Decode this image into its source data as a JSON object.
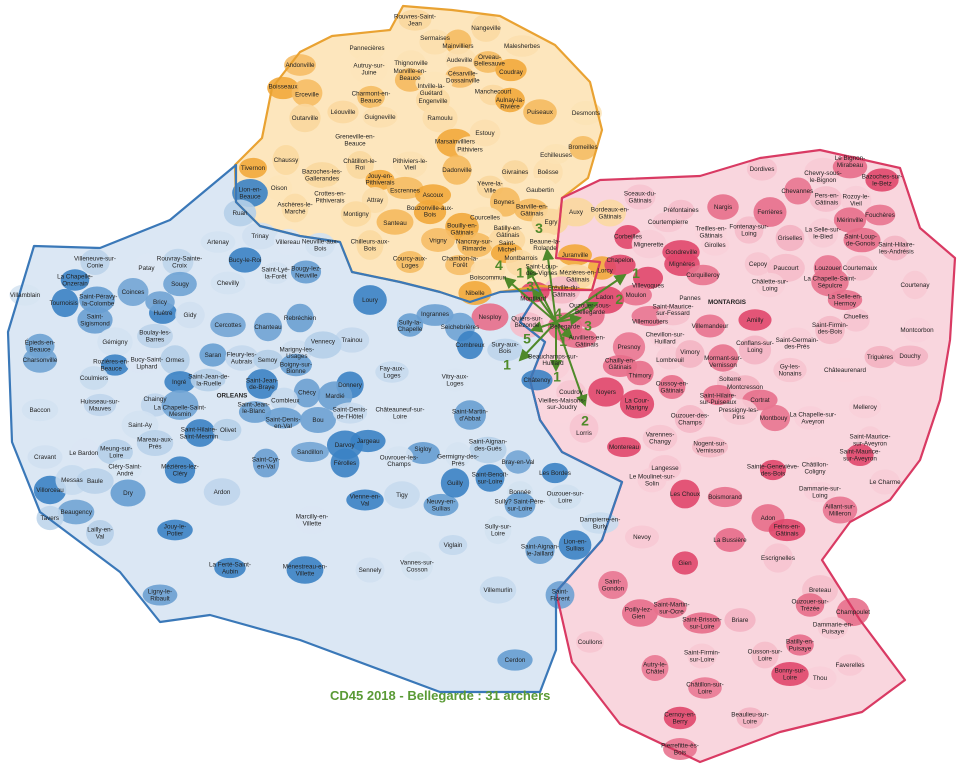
{
  "title": "CD45 2018 - Bellegarde : 31 archers",
  "colors": {
    "north": "#f2a93b",
    "north_light": "#fde6bd",
    "north_border": "#e9a232",
    "west": "#3b82c4",
    "west_light": "#dbe7f4",
    "west_border": "#3a78b8",
    "east": "#e0476b",
    "east_light": "#f9d6de",
    "east_border": "#d93a63",
    "arrows": "#4f8a2a"
  },
  "hub": {
    "name": "Bellegarde",
    "count": 4
  },
  "flows": [
    {
      "to": "Beaune-la-Rolande",
      "count": 3
    },
    {
      "to": "Boiscommun",
      "count": 4
    },
    {
      "to": "Montbarrois",
      "count": 1
    },
    {
      "to": "Montliard",
      "count": 3
    },
    {
      "to": "Chapelon",
      "count": 1
    },
    {
      "to": "Ladon",
      "count": 2
    },
    {
      "to": "Ouzouer-sous-Bellegarde",
      "count": 3
    },
    {
      "to": "Quiers-sur-Bézonde",
      "count": 5
    },
    {
      "to": "Auvilliers-en-Gâtinais",
      "count": 1
    },
    {
      "to": "Sury-aux-Bois",
      "count": 1
    },
    {
      "to": "Beauchamps-sur-Huillard",
      "count": 1
    },
    {
      "to": "Coudroy",
      "count": 2
    }
  ],
  "communes": {
    "north": [
      "Rouvres-Saint-Jean",
      "Sermaises",
      "Pannecières",
      "Nangeville",
      "Mainvilliers",
      "Malesherbes",
      "Andonville",
      "Autruy-sur-Juine",
      "Thignonville",
      "Audeville",
      "Orveau-Bellesauve",
      "Coudray",
      "Césarville-Dossainville",
      "Morville-en-Beauce",
      "Intville-la-Guétard",
      "Boisseaux",
      "Erceville",
      "Charmont-en-Beauce",
      "Manchecourt",
      "Engenville",
      "Aulnay-la-Rivière",
      "Outarville",
      "Léouville",
      "Guigneville",
      "Ramoulu",
      "Marsainvilliers",
      "Puiseaux",
      "Pithiviers",
      "Estouy",
      "Dadonville",
      "Greneville-en-Beauce",
      "Chaussy",
      "Bazoches-les-Gallerandes",
      "Châtillon-le-Roi",
      "Jouy-en-Pithiverais",
      "Pithiviers-le-Vieil",
      "Escrennes",
      "Tivernon",
      "Oison",
      "Ascoux",
      "Yèvre-la-Ville",
      "Givraines",
      "Boësse",
      "Echilleuses",
      "Bromeilles",
      "Desmonts",
      "Gaubertin",
      "Boynes",
      "Barville-en-Gâtinais",
      "Aschères-le-Marché",
      "Crottes-en-Pithiverais",
      "Attray",
      "Montigny",
      "Bouzonville-aux-Bois",
      "Courcelles",
      "Egry",
      "Auxy",
      "Bordeaux-en-Gâtinais",
      "Santeau",
      "Bouilly-en-Gâtinais",
      "Chilleurs-aux-Bois",
      "Vrigny",
      "Nancray-sur-Rimarde",
      "Batilly-en-Gâtinais",
      "Beaune-la-Rolande",
      "Juranville",
      "Courcy-aux-Loges",
      "Chambon-la-Forêt",
      "Saint-Michel",
      "Montbarrois",
      "Boiscommun",
      "Nibelle",
      "Lorcy",
      "Mézières-en-Gâtinais",
      "Saint-Loup-des-Vignes"
    ],
    "east": [
      "Sceaux-du-Gâtinais",
      "Préfontaines",
      "Nargis",
      "Corbeilles",
      "Courtempierre",
      "Mignerette",
      "Treilles-en-Gâtinais",
      "Fontenay-sur-Loing",
      "Griselles",
      "Gondreville",
      "Mignères",
      "Girolles",
      "Ferrières",
      "Dordives",
      "Chevry-sous-le-Bignon",
      "Le Bignon-Mirabeau",
      "Chevannes",
      "Bazoches-sur-le-Betz",
      "Pers-en-Gâtinais",
      "Rozoy-le-Vieil",
      "Mérinville",
      "Fouchères",
      "La Selle-sur-le-Bied",
      "Saint-Loup-de-Gonois",
      "Chapelon",
      "Villevoques",
      "Cepoy",
      "Paucourt",
      "Corquilleroy",
      "Saint-Hilaire-les-Andrésis",
      "Courtemaux",
      "Louzouer",
      "Moulon",
      "Pannes",
      "MONTARGIS",
      "Châlette-sur-Loing",
      "La Chapelle-Saint-Sépulcre",
      "Courtenay",
      "Ladon",
      "Villemoutiers",
      "Saint-Maurice-sur-Fessard",
      "Villemandeur",
      "Amilly",
      "La Selle-en-Hermoy",
      "Chuelles",
      "Montcorbon",
      "Presnoy",
      "Chevillon-sur-Huillard",
      "Lombreuil",
      "Saint-Germain-des-Prés",
      "Saint-Firmin-des-Bois",
      "Conflans-sur-Loing",
      "Mormant-sur-Vernisson",
      "Vimory",
      "Gy-les-Nonains",
      "Douchy",
      "Triguères",
      "Chailly-en-Gâtinais",
      "Thimory",
      "Oussoy-en-Gâtinais",
      "Solterre",
      "Saint-Hilaire-sur-Puiseaux",
      "Montcresson",
      "Châteaurenard",
      "Cortrat",
      "Noyers",
      "Coudroy",
      "La Cour-Marigny",
      "Ouzouer-des-Champs",
      "Pressigny-les-Pins",
      "Montbouy",
      "La Chapelle-sur-Aveyron",
      "Melleroy",
      "Vieilles-Maisons-sur-Joudry",
      "Lorris",
      "Varennes-Changy",
      "Nogent-sur-Vernisson",
      "Saint-Maurice-sur-Aveyron",
      "Montereau",
      "Châtillon-Coligny",
      "Sainte-Geneviève-des-Bois",
      "Langesse",
      "Le Moulinet-sur-Solin",
      "Dammarie-sur-Loing",
      "Aillant-sur-Milleron",
      "Les Choux",
      "Boismorand",
      "Le Charme",
      "Adon",
      "Feins-en-Gâtinais",
      "Nevoy",
      "La Bussière",
      "Escrignelles",
      "Gien",
      "Breteau",
      "Ouzouer-sur-Trézée",
      "Champoulet",
      "Saint-Gondon",
      "Poilly-lez-Gien",
      "Saint-Martin-sur-Ocre",
      "Saint-Brisson-sur-Loire",
      "Briare",
      "Dammarie-en-Puisaye",
      "Coullons",
      "Saint-Firmin-sur-Loire",
      "Ousson-sur-Loire",
      "Faverelles",
      "Thou",
      "Autry-le-Châtel",
      "Bonny-sur-Loire",
      "Châtillon-sur-Loire",
      "Cernoy-en-Berry",
      "Beaulieu-sur-Loire",
      "Pierrefitte-ès-Bois",
      "Bellegarde",
      "Quiers-sur-Bézonde",
      "Nesploy",
      "Fréville-du-Gâtinais",
      "Auvilliers-en-Gâtinais",
      "Beauchamps-sur-Huillard",
      "Montliard",
      "Ouzouer-sous-Bellegarde",
      "Saint-Maurice-sur-Aveyron",
      "Batilly-en-Puisaye"
    ],
    "west": [
      "Lion-en-Beauce",
      "Ruan",
      "Artenay",
      "Trinay",
      "Villereau",
      "Neuville-aux-Bois",
      "Bucy-le-Roi",
      "Bougy-lez-Neuville",
      "Saint-Lyé-la-Forêt",
      "Villeneuve-sur-Conie",
      "Patay",
      "Rouvray-Sainte-Croix",
      "La Chapelle-Onzerain",
      "Tournoisis",
      "Villamblain",
      "Sougy",
      "Huêtre",
      "Coinces",
      "Saint-Péravy-la-Colombe",
      "Chevilly",
      "Loury",
      "Ingrannes",
      "Sully-la-Chapelle",
      "Seichebrières",
      "Bricy",
      "Gidy",
      "Saint-Sigismond",
      "Rebréchien",
      "Cercottes",
      "Chanteau",
      "Trainou",
      "Gémigny",
      "Boulay-les-Barres",
      "Épieds-en-Beauce",
      "Marigny-les-Usages",
      "Vennecy",
      "Combreux",
      "Rozières-en-Beauce",
      "Bucy-Saint-Liphard",
      "Ormes",
      "Saran",
      "Fleury-les-Aubrais",
      "Semoy",
      "Boigny-sur-Bionne",
      "Charsonville",
      "Coulmiers",
      "Fay-aux-Loges",
      "Vitry-aux-Loges",
      "Ingré",
      "Saint-Jean-de-la-Ruelle",
      "Saint-Jean-de-Braye",
      "Donnery",
      "Chécy",
      "Mardié",
      "Huisseau-sur-Mauves",
      "Baccon",
      "Chaingy",
      "La Chapelle-Saint-Mesmin",
      "ORLEANS",
      "Combleux",
      "Saint-Jean-le-Blanc",
      "Saint-Denis-en-Val",
      "Bou",
      "Châteauneuf-sur-Loire",
      "Saint-Denis-de-l'Hôtel",
      "Saint-Martin-d'Abbat",
      "Châtenoy",
      "Saint-Ay",
      "Saint-Hilaire-Saint-Mesmin",
      "Olivet",
      "Mareau-aux-Prés",
      "Cravant",
      "Le Bardon",
      "Meung-sur-Loire",
      "Darvoy",
      "Jargeau",
      "Sandillon",
      "Saint-Aignan-des-Gués",
      "Germigny-des-Prés",
      "Sigloy",
      "Férolles",
      "Ouvrouer-les-Champs",
      "Bray-en-Val",
      "Saint-Cyr-en-Val",
      "Cléry-Saint-André",
      "Mézières-lez-Cléry",
      "Villorceau",
      "Messas",
      "Baule",
      "Les Bordes",
      "Saint-Benoît-sur-Loire",
      "Bonnée",
      "Dry",
      "Ardon",
      "Tigy",
      "Vienne-en-Val",
      "Neuvy-en-Sullias",
      "Ouzouer-sur-Loire",
      "Beaugency",
      "Tavers",
      "Marcilly-en-Villette",
      "Jouy-le-Potier",
      "Lailly-en-Val",
      "Sully-sur-Loire",
      "Dampierre-en-Burly",
      "Viglain",
      "Saint-Aignan-le-Jaillard",
      "Lion-en-Sullias",
      "Vannes-sur-Cosson",
      "La Ferté-Saint-Aubin",
      "Ménestreau-en-Villette",
      "Sennely",
      "Villemurlin",
      "Saint-Florent",
      "Ligny-le-Ribault",
      "Cerdon",
      "Sury-aux-Bois",
      "Guilly",
      "Sully? Saint-Père-sur-Loire"
    ]
  }
}
